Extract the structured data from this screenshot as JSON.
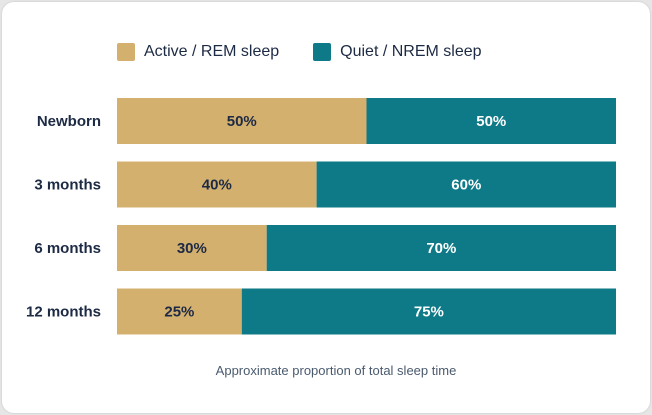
{
  "chart_data": {
    "type": "bar",
    "orientation": "horizontal",
    "stacked": true,
    "categories": [
      "Newborn",
      "3 months",
      "6 months",
      "12 months"
    ],
    "series": [
      {
        "name": "Active / REM sleep",
        "color": "#d4b06f",
        "values": [
          50,
          40,
          30,
          25
        ],
        "labels": [
          "50%",
          "40%",
          "30%",
          "25%"
        ]
      },
      {
        "name": "Quiet / NREM sleep",
        "color": "#0f7a87",
        "values": [
          50,
          60,
          70,
          75
        ],
        "labels": [
          "50%",
          "60%",
          "70%",
          "75%"
        ]
      }
    ],
    "xlim": [
      0,
      100
    ],
    "grid": false,
    "legend_position": "top",
    "caption": "Approximate proportion of total sleep time",
    "series_label_colors": [
      "#1d2a44",
      "#ffffff"
    ]
  }
}
